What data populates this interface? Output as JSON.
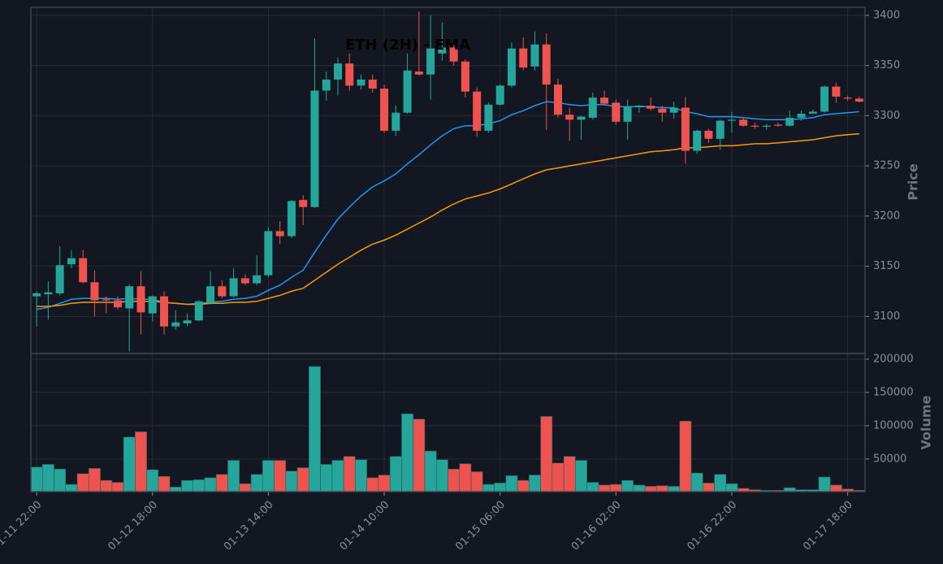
{
  "chart_data": [
    {
      "type": "candlestick",
      "title": "ETH (2H) - EMA",
      "y_label": "Price",
      "open": [
        3120,
        3122,
        3123,
        3152,
        3158,
        3134,
        3117,
        3116,
        3108,
        3130,
        3103,
        3120,
        3090,
        3093,
        3096,
        3113,
        3130,
        3120,
        3138,
        3133,
        3141,
        3185,
        3180,
        3216,
        3209,
        3325,
        3336,
        3352,
        3330,
        3336,
        3327,
        3285,
        3303,
        3344,
        3341,
        3362,
        3368,
        3354,
        3324,
        3285,
        3311,
        3330,
        3367,
        3349,
        3371,
        3331,
        3301,
        3296,
        3298,
        3318,
        3313,
        3294,
        3309,
        3310,
        3307,
        3303,
        3308,
        3265,
        3285,
        3277,
        3295,
        3296,
        3290,
        3289,
        3291,
        3290,
        3298,
        3302,
        3304,
        3329,
        3318,
        3317
      ],
      "high": [
        3125,
        3135,
        3170,
        3166,
        3166,
        3146,
        3120,
        3120,
        3132,
        3145,
        3121,
        3125,
        3106,
        3103,
        3116,
        3145,
        3136,
        3148,
        3142,
        3161,
        3189,
        3195,
        3216,
        3221,
        3377,
        3344,
        3358,
        3362,
        3341,
        3341,
        3331,
        3310,
        3362,
        3404,
        3400,
        3393,
        3373,
        3356,
        3328,
        3313,
        3331,
        3373,
        3378,
        3384,
        3382,
        3337,
        3308,
        3300,
        3323,
        3325,
        3316,
        3316,
        3311,
        3318,
        3310,
        3314,
        3319,
        3286,
        3287,
        3296,
        3304,
        3298,
        3293,
        3292,
        3293,
        3305,
        3305,
        3306,
        3330,
        3333,
        3320,
        3319
      ],
      "low": [
        3090,
        3097,
        3121,
        3148,
        3133,
        3100,
        3103,
        3107,
        3065,
        3082,
        3095,
        3082,
        3087,
        3090,
        3095,
        3112,
        3118,
        3119,
        3131,
        3131,
        3139,
        3172,
        3178,
        3191,
        3208,
        3315,
        3320,
        3325,
        3326,
        3323,
        3283,
        3280,
        3302,
        3340,
        3316,
        3355,
        3350,
        3318,
        3279,
        3283,
        3310,
        3328,
        3345,
        3345,
        3286,
        3298,
        3275,
        3276,
        3296,
        3310,
        3291,
        3276,
        3303,
        3305,
        3294,
        3297,
        3252,
        3262,
        3273,
        3266,
        3283,
        3289,
        3287,
        3286,
        3289,
        3289,
        3295,
        3302,
        3303,
        3313,
        3315,
        3313
      ],
      "close": [
        3123,
        3124,
        3151,
        3158,
        3134,
        3116,
        3116,
        3109,
        3130,
        3104,
        3120,
        3090,
        3094,
        3096,
        3115,
        3130,
        3120,
        3138,
        3133,
        3141,
        3185,
        3180,
        3215,
        3209,
        3325,
        3336,
        3352,
        3330,
        3336,
        3327,
        3285,
        3303,
        3345,
        3341,
        3367,
        3368,
        3354,
        3324,
        3285,
        3311,
        3330,
        3367,
        3348,
        3371,
        3331,
        3301,
        3296,
        3299,
        3318,
        3312,
        3294,
        3309,
        3310,
        3307,
        3303,
        3308,
        3265,
        3285,
        3277,
        3295,
        3296,
        3290,
        3289,
        3290,
        3290,
        3298,
        3302,
        3304,
        3329,
        3319,
        3317,
        3314
      ],
      "up_color": "#26a69a",
      "down_color": "#ef5350",
      "lines": [
        {
          "color": "#2196f3",
          "values": [
            3107,
            3109,
            3113,
            3117,
            3118,
            3118,
            3118,
            3117,
            3118,
            3117,
            3117,
            3114,
            3113,
            3112,
            3113,
            3114,
            3115,
            3117,
            3118,
            3120,
            3126,
            3131,
            3139,
            3146,
            3164,
            3181,
            3197,
            3209,
            3220,
            3229,
            3235,
            3242,
            3252,
            3261,
            3271,
            3280,
            3287,
            3290,
            3290,
            3292,
            3295,
            3301,
            3305,
            3310,
            3314,
            3313,
            3311,
            3310,
            3311,
            3311,
            3309,
            3309,
            3309,
            3309,
            3308,
            3308,
            3304,
            3302,
            3299,
            3299,
            3299,
            3298,
            3297,
            3296,
            3296,
            3296,
            3297,
            3298,
            3301,
            3302,
            3303,
            3304
          ]
        },
        {
          "color": "#ff9800",
          "values": [
            3110,
            3110,
            3111,
            3113,
            3114,
            3114,
            3114,
            3114,
            3115,
            3115,
            3115,
            3114,
            3113,
            3112,
            3112,
            3113,
            3113,
            3114,
            3114,
            3115,
            3118,
            3121,
            3125,
            3128,
            3136,
            3144,
            3152,
            3159,
            3166,
            3172,
            3176,
            3181,
            3187,
            3193,
            3199,
            3206,
            3212,
            3217,
            3220,
            3223,
            3227,
            3232,
            3237,
            3242,
            3246,
            3248,
            3250,
            3252,
            3254,
            3256,
            3258,
            3260,
            3262,
            3264,
            3265,
            3266,
            3268,
            3268,
            3269,
            3270,
            3270,
            3271,
            3272,
            3272,
            3273,
            3274,
            3275,
            3276,
            3278,
            3280,
            3281,
            3282
          ]
        }
      ],
      "ylim": [
        3063,
        3408
      ],
      "yticks": [
        3100,
        3150,
        3200,
        3250,
        3300,
        3350,
        3400
      ],
      "grid": true
    },
    {
      "type": "bar",
      "y_label": "Volume",
      "categories": [
        "01-11 22:00",
        null,
        null,
        null,
        null,
        null,
        null,
        null,
        null,
        null,
        "01-12 18:00",
        null,
        null,
        null,
        null,
        null,
        null,
        null,
        null,
        null,
        "01-13 14:00",
        null,
        null,
        null,
        null,
        null,
        null,
        null,
        null,
        null,
        "01-14 10:00",
        null,
        null,
        null,
        null,
        null,
        null,
        null,
        null,
        null,
        "01-15 06:00",
        null,
        null,
        null,
        null,
        null,
        null,
        null,
        null,
        null,
        "01-16 02:00",
        null,
        null,
        null,
        null,
        null,
        null,
        null,
        null,
        null,
        "01-16 22:00",
        null,
        null,
        null,
        null,
        null,
        null,
        null,
        null,
        null,
        "01-17 18:00",
        null
      ],
      "values": [
        38000,
        42000,
        35000,
        12000,
        28000,
        36000,
        18000,
        15000,
        83000,
        91000,
        34000,
        24000,
        8000,
        18000,
        19000,
        22000,
        27000,
        48000,
        13000,
        27000,
        48000,
        48000,
        32000,
        37000,
        189000,
        42000,
        48000,
        54000,
        49000,
        22000,
        26000,
        54000,
        118000,
        110000,
        62000,
        49000,
        35000,
        43000,
        31000,
        12000,
        14000,
        25000,
        18000,
        26000,
        114000,
        44000,
        54000,
        48000,
        15000,
        11000,
        12000,
        18000,
        11000,
        9000,
        10000,
        9000,
        107000,
        29000,
        14000,
        27000,
        13000,
        6000,
        4000,
        3000,
        3000,
        7000,
        4000,
        4000,
        23000,
        11000,
        5000,
        3000
      ],
      "ylim": [
        1000,
        208500
      ],
      "yticks": [
        50000,
        100000,
        150000,
        200000
      ],
      "grid": true
    }
  ]
}
